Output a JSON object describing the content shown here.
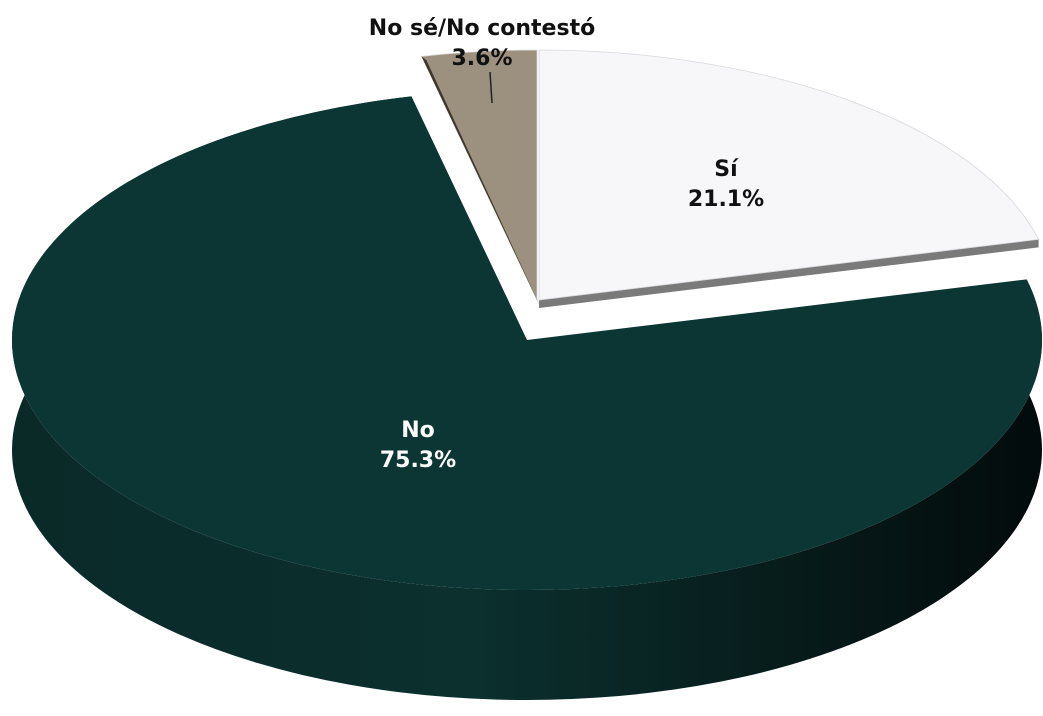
{
  "chart_data": {
    "type": "pie",
    "title": "",
    "slices": [
      {
        "label": "Sí",
        "value": 21.1,
        "value_text": "21.1%",
        "color": "#f7f7f9"
      },
      {
        "label": "No",
        "value": 75.3,
        "value_text": "75.3%",
        "color": "#0b3634"
      },
      {
        "label": "No sé/No contestó",
        "value": 3.6,
        "value_text": "3.6%",
        "color": "#9b917e"
      }
    ],
    "unit": "%",
    "legend": "none",
    "style": "3d-tilted"
  }
}
